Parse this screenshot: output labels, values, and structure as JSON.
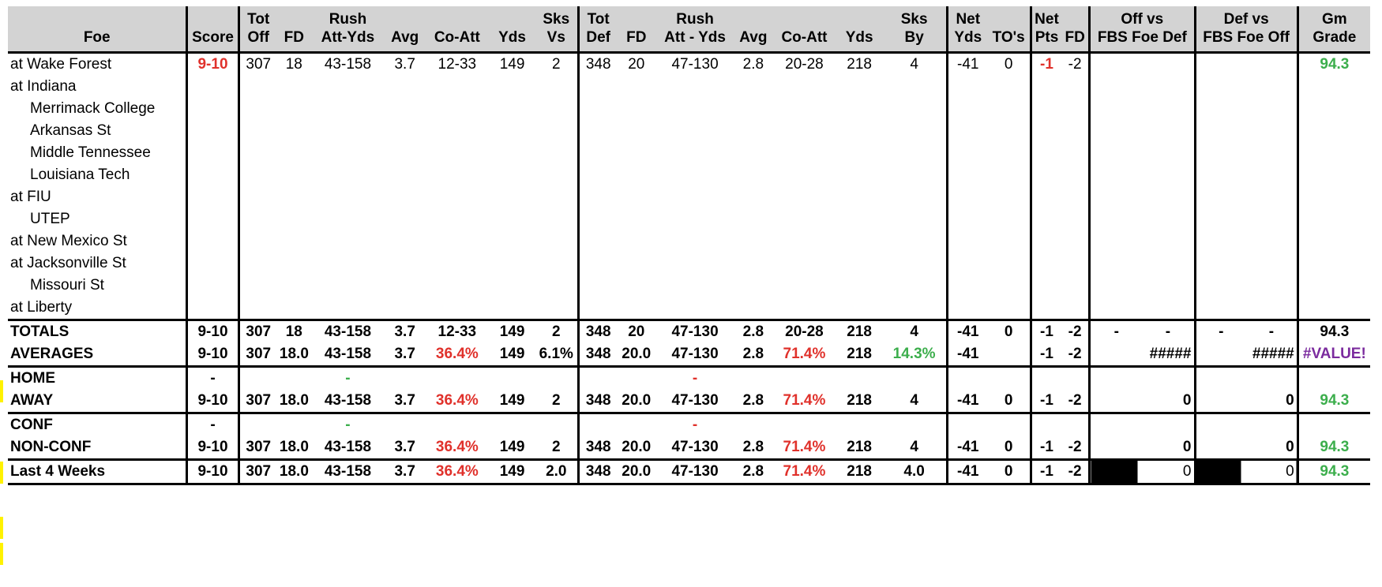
{
  "header": {
    "row1": [
      "",
      "",
      "Tot",
      "",
      "Rush",
      "",
      "",
      "",
      "Sks",
      "Tot",
      "",
      "Rush",
      "",
      "",
      "",
      "Sks",
      "Net",
      "",
      "Net",
      "",
      "Off vs",
      "Def vs",
      "Gm"
    ],
    "row2": [
      "Foe",
      "Score",
      "Off",
      "FD",
      "Att-Yds",
      "Avg",
      "Co-Att",
      "Yds",
      "Vs",
      "Def",
      "FD",
      "Att - Yds",
      "Avg",
      "Co-Att",
      "Yds",
      "By",
      "Yds",
      "TO's",
      "Pts",
      "FD",
      "FBS Foe Def",
      "FBS Foe Off",
      "Grade"
    ]
  },
  "games": [
    {
      "foe": "at Wake Forest",
      "score": "9-10",
      "tot_off": "307",
      "fd": "18",
      "rush": "43-158",
      "avg": "3.7",
      "co_att": "12-33",
      "yds": "149",
      "sks_vs": "2",
      "tot_def": "348",
      "dfd": "20",
      "drush": "47-130",
      "davg": "2.8",
      "dco_att": "20-28",
      "dyds": "218",
      "sks_by": "4",
      "net_yds": "-41",
      "tos": "0",
      "net_pts": "-1",
      "net_fd": "-2",
      "off_vs": "",
      "def_vs": "",
      "grade": "94.3"
    },
    {
      "foe": "at Indiana"
    },
    {
      "foe": "Merrimack College"
    },
    {
      "foe": "Arkansas St"
    },
    {
      "foe": "Middle Tennessee"
    },
    {
      "foe": "Louisiana Tech"
    },
    {
      "foe": "at FIU"
    },
    {
      "foe": "UTEP"
    },
    {
      "foe": "at New Mexico St"
    },
    {
      "foe": "at Jacksonville St"
    },
    {
      "foe": "Missouri St"
    },
    {
      "foe": "at Liberty"
    }
  ],
  "summary": {
    "totals": [
      "TOTALS",
      "9-10",
      "307",
      "18",
      "43-158",
      "3.7",
      "12-33",
      "149",
      "2",
      "348",
      "20",
      "47-130",
      "2.8",
      "20-28",
      "218",
      "4",
      "-41",
      "0",
      "-1",
      "-2",
      "-",
      "-",
      "-",
      "-",
      "94.3"
    ],
    "averages": [
      "AVERAGES",
      "9-10",
      "307",
      "18.0",
      "43-158",
      "3.7",
      "36.4%",
      "149",
      "6.1%",
      "348",
      "20.0",
      "47-130",
      "2.8",
      "71.4%",
      "218",
      "14.3%",
      "-41",
      "",
      "-1",
      "-2",
      "#####",
      "#####",
      "#VALUE!"
    ],
    "home": [
      "HOME",
      "-",
      "-",
      "-"
    ],
    "away": [
      "AWAY",
      "9-10",
      "307",
      "18.0",
      "43-158",
      "3.7",
      "36.4%",
      "149",
      "2",
      "348",
      "20.0",
      "47-130",
      "2.8",
      "71.4%",
      "218",
      "4",
      "-41",
      "0",
      "-1",
      "-2",
      "0",
      "0",
      "94.3"
    ],
    "conf": [
      "CONF",
      "-",
      "-",
      "-"
    ],
    "nonconf": [
      "NON-CONF",
      "9-10",
      "307",
      "18.0",
      "43-158",
      "3.7",
      "36.4%",
      "149",
      "2",
      "348",
      "20.0",
      "47-130",
      "2.8",
      "71.4%",
      "218",
      "4",
      "-41",
      "0",
      "-1",
      "-2",
      "0",
      "0",
      "94.3"
    ],
    "last4": [
      "Last 4 Weeks",
      "9-10",
      "307",
      "18.0",
      "43-158",
      "3.7",
      "36.4%",
      "149",
      "2.0",
      "348",
      "20.0",
      "47-130",
      "2.8",
      "71.4%",
      "218",
      "4.0",
      "-41",
      "0",
      "-1",
      "-2",
      "0",
      "0",
      "94.3"
    ]
  },
  "colors": {
    "negative": "#e0312b",
    "positive": "#3cae4c",
    "error": "#7b2b9e",
    "header_bg": "#d3d3d3"
  }
}
